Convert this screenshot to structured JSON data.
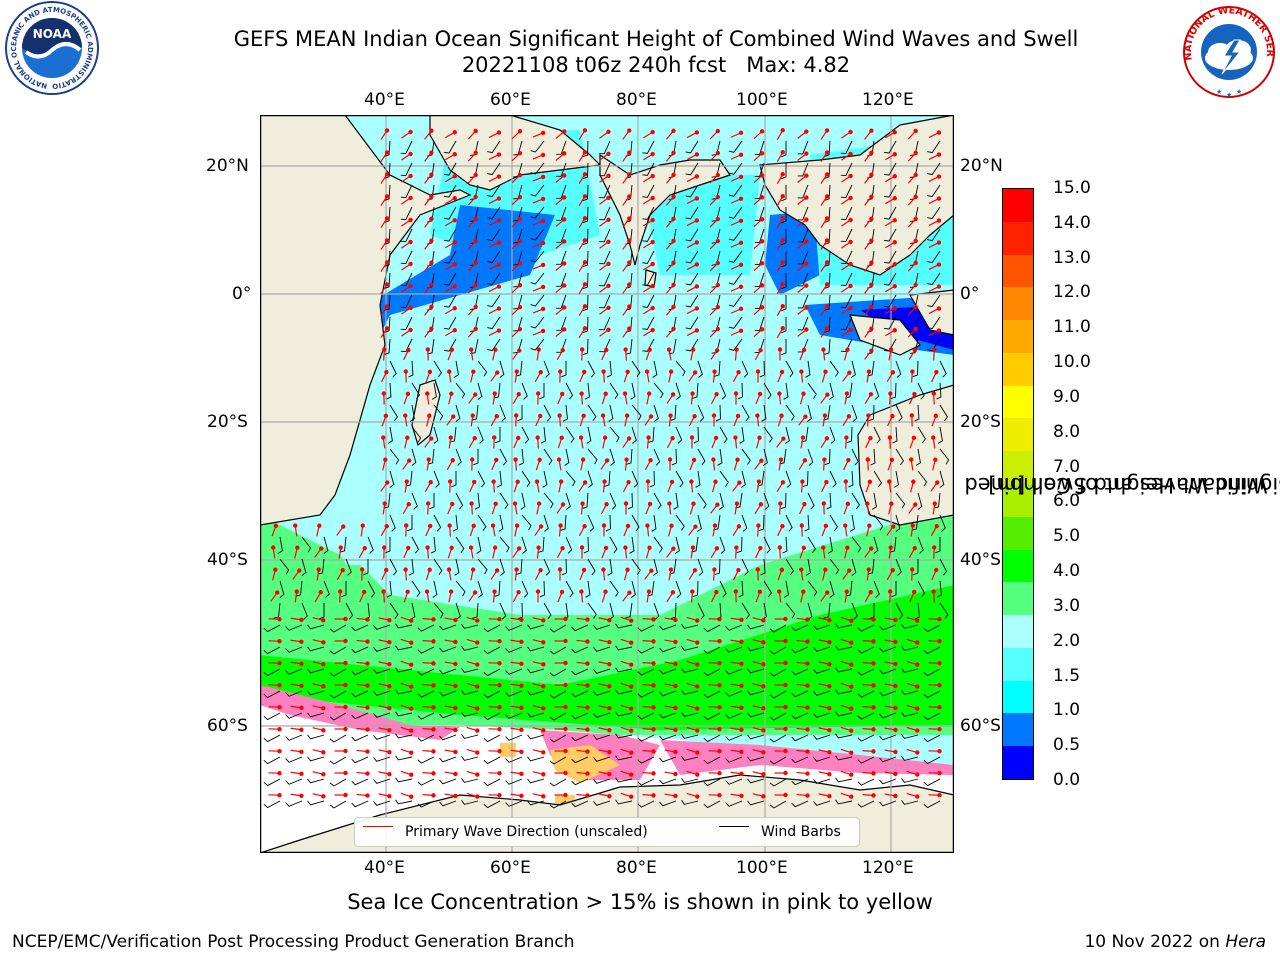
{
  "title": {
    "line1": "GEFS MEAN Indian Ocean Significant Height of Combined Wind Waves and Swell",
    "line2": "20221108 t06z 240h fcst   Max: 4.82"
  },
  "map": {
    "lon_range": [
      20,
      130
    ],
    "lat_range": [
      -75,
      28
    ],
    "lon_ticks": [
      "40°E",
      "60°E",
      "80°E",
      "100°E",
      "120°E"
    ],
    "lat_ticks": [
      "20°N",
      "0°",
      "20°S",
      "40°S",
      "60°S"
    ],
    "land_color": "#efeedd",
    "sea_ice_color": "#ff80c0"
  },
  "colorbar": {
    "title_line1": "Significant Height of Combined",
    "title_line2": "Wind Waves and Swell [m]",
    "labels": [
      "15.0",
      "14.0",
      "13.0",
      "12.0",
      "11.0",
      "10.0",
      "9.0",
      "8.0",
      "7.0",
      "6.0",
      "5.0",
      "4.0",
      "3.0",
      "2.0",
      "1.5",
      "1.0",
      "0.5",
      "0.0"
    ],
    "colors": [
      "#0000ff",
      "#0078ff",
      "#00ffff",
      "#55ffff",
      "#aaffff",
      "#55ff80",
      "#00ff00",
      "#55ee00",
      "#aaee00",
      "#ccee00",
      "#eeee00",
      "#ffff00",
      "#ffcc00",
      "#ffaa00",
      "#ff8800",
      "#ff5500",
      "#ff2200",
      "#ff0000"
    ]
  },
  "legend": {
    "wave_direction": "Primary Wave Direction (unscaled)",
    "wind_barbs": "Wind Barbs",
    "wave_color": "#ff0000",
    "barb_color": "#000000"
  },
  "caption": "Sea Ice Concentration > 15% is shown in pink to yellow",
  "footer": {
    "left": "NCEP/EMC/Verification Post Processing Product Generation Branch",
    "right_prefix": "10 Nov 2022 on",
    "right_machine": "Hera"
  },
  "logos": {
    "noaa": "NOAA",
    "noaa_ring": "NATIONAL OCEANIC AND ATMOSPHERIC ADMINISTRATION • U.S. DEPARTMENT OF COMMERCE",
    "nws_ring": "NATIONAL WEATHER SERVICE"
  }
}
